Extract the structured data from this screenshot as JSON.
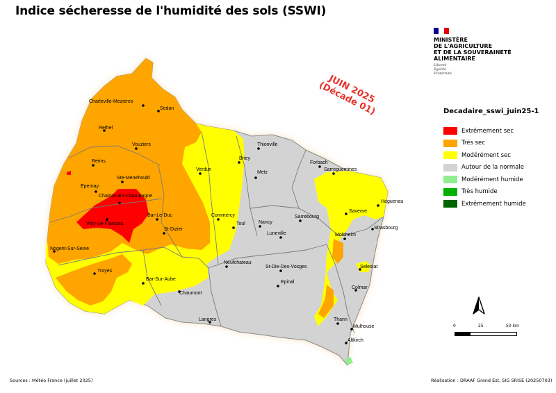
{
  "title": "Indice sécheresse de l'humidité des sols (SSWI)",
  "logo": {
    "line1": "MINISTÈRE",
    "line2": "DE L'AGRICULTURE",
    "line3": "ET DE LA SOUVERAINETÉ",
    "line4": "ALIMENTAIRE",
    "motto1": "Liberté",
    "motto2": "Égalité",
    "motto3": "Fraternité"
  },
  "date_stamp": {
    "line1": "JUIN 2025",
    "line2": "(Décade 01)",
    "color": "#e8312b"
  },
  "legend": {
    "title": "Decadaire_sswi_juin25-1",
    "items": [
      {
        "label": "Extrêmement sec",
        "color": "#ff0000"
      },
      {
        "label": "Très sec",
        "color": "#ffa500"
      },
      {
        "label": "Modérément sec",
        "color": "#ffff00"
      },
      {
        "label": "Autour de la normale",
        "color": "#d3d3d3"
      },
      {
        "label": "Modérément humide",
        "color": "#90ee90"
      },
      {
        "label": "Très humide",
        "color": "#00b000"
      },
      {
        "label": "Extrêmement humide",
        "color": "#006400"
      }
    ]
  },
  "scale": {
    "labels": [
      "0",
      "25",
      "50 km"
    ]
  },
  "footer": {
    "source": "Sources : Météo France (juillet 2025)",
    "credit": "Réalisation : DRAAF Grand Est, SIG SRISE (20250703)"
  },
  "cities": [
    "Charleville-Mezieres",
    "Sedan",
    "Rethel",
    "Vouziers",
    "Reims",
    "Ste-Menehould",
    "Epernay",
    "Chalons-En-Champagne",
    "Vitry-Le-Francois",
    "Bar-Le-Duc",
    "St-Dizier",
    "Verdun",
    "Briey",
    "Thionville",
    "Metz",
    "Forbach",
    "Sarreguemines",
    "Commercy",
    "Toul",
    "Nancy",
    "Sarrebourg",
    "Saverne",
    "Haguenau",
    "Strasbourg",
    "Luneville",
    "Molsheim",
    "Nogent-Sur-Seine",
    "Troyes",
    "Bar-Sur-Aube",
    "Chaumont",
    "Neufchateau",
    "St-Die-Des-Vosges",
    "Epinal",
    "Selestat",
    "Colmar",
    "Langres",
    "Thann",
    "Mulhouse",
    "Altkirch"
  ]
}
